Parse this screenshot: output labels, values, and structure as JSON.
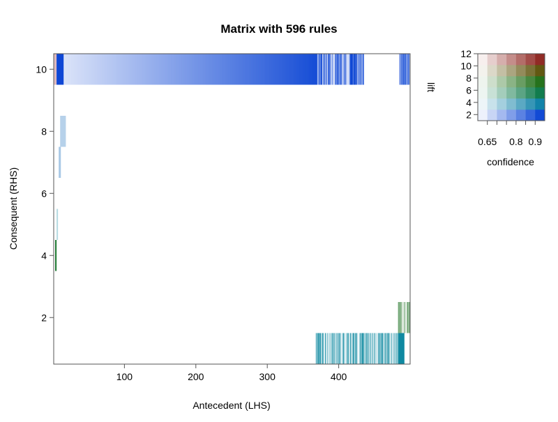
{
  "chart_data": {
    "type": "heatmap",
    "title": "Matrix with 596 rules",
    "xlabel": "Antecedent (LHS)",
    "ylabel": "Consequent (RHS)",
    "xlim": [
      1,
      500
    ],
    "ylim": [
      0.5,
      10.5
    ],
    "x_ticks": [
      100,
      200,
      300,
      400
    ],
    "y_ticks": [
      2,
      4,
      6,
      8,
      10
    ],
    "grid": false,
    "legend": {
      "position": "top-right",
      "type": "2d-color-key",
      "x_var": "confidence",
      "y_var": "lift",
      "x_ticks": [
        "0.65",
        "0.8",
        "0.9"
      ],
      "y_ticks": [
        "2",
        "4",
        "6",
        "8",
        "10",
        "12"
      ],
      "confidence_range": [
        0.6,
        0.95
      ],
      "lift_range": [
        1,
        12
      ]
    },
    "blocks": [
      {
        "rhs": 10,
        "lhs_start": 1,
        "lhs_end": 5,
        "lift": 11.5,
        "confidence": 0.7
      },
      {
        "rhs": 10,
        "lhs_start": 5,
        "lhs_end": 15,
        "lift": 2.0,
        "confidence": 0.93
      },
      {
        "rhs": 10,
        "lhs_start": 15,
        "lhs_end": 370,
        "lift": 2.0,
        "confidence": [
          0.65,
          0.92
        ],
        "gradient": true
      },
      {
        "rhs": 10,
        "lhs_start": 370,
        "lhs_end": 435,
        "lift": 2.0,
        "confidence": [
          0.62,
          0.95
        ],
        "striped": true
      },
      {
        "rhs": 10,
        "lhs_start": 485,
        "lhs_end": 500,
        "lift": 2.0,
        "confidence": [
          0.7,
          0.9
        ],
        "striped": true
      },
      {
        "rhs": 8,
        "lhs_start": 10,
        "lhs_end": 18,
        "lift": 3.0,
        "confidence": 0.7
      },
      {
        "rhs": 7,
        "lhs_start": 8,
        "lhs_end": 11,
        "lift": 3.0,
        "confidence": 0.72
      },
      {
        "rhs": 6,
        "lhs_start": 7,
        "lhs_end": 9,
        "lift": 3.0,
        "confidence": 0.6
      },
      {
        "rhs": 5,
        "lhs_start": 5,
        "lhs_end": 7,
        "lift": 4.0,
        "confidence": 0.7
      },
      {
        "rhs": 4,
        "lhs_start": 3,
        "lhs_end": 5,
        "lift": 6.5,
        "confidence": 0.92
      },
      {
        "rhs": 2,
        "lhs_start": 483,
        "lhs_end": 500,
        "lift": 7.0,
        "confidence": [
          0.6,
          0.85
        ],
        "striped": true
      },
      {
        "rhs": 1,
        "lhs_start": 368,
        "lhs_end": 483,
        "lift": 4.0,
        "confidence": [
          0.6,
          0.92
        ],
        "striped": true
      },
      {
        "rhs": 1,
        "lhs_start": 483,
        "lhs_end": 492,
        "lift": 4.0,
        "confidence": 0.93
      }
    ]
  }
}
